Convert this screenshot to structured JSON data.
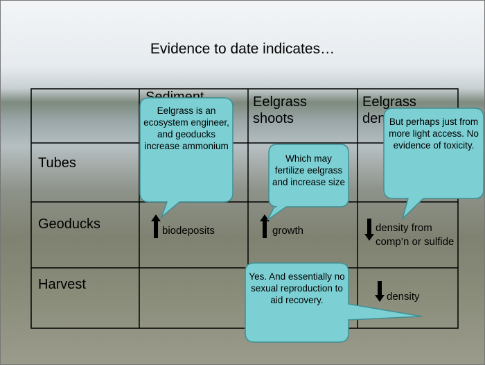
{
  "title": "Evidence to date indicates…",
  "table": {
    "columns": [
      "Sediment",
      "Eelgrass shoots",
      "Eelgrass density"
    ],
    "rows": [
      {
        "label": "Tubes"
      },
      {
        "label": "Geoducks",
        "sediment": "biodeposits",
        "eelgrass_shoots": "growth",
        "eelgrass_density": "density from comp’n or sulfide"
      },
      {
        "label": "Harvest",
        "eelgrass_density": "density"
      }
    ]
  },
  "callouts": [
    "Eelgrass is an ecosystem engineer, and geoducks increase ammonium",
    "Which may fertilize eelgrass and increase size",
    "But perhaps just from more light access. No evidence of toxicity.",
    "Yes. And essentially no sexual reproduction to aid recovery."
  ]
}
